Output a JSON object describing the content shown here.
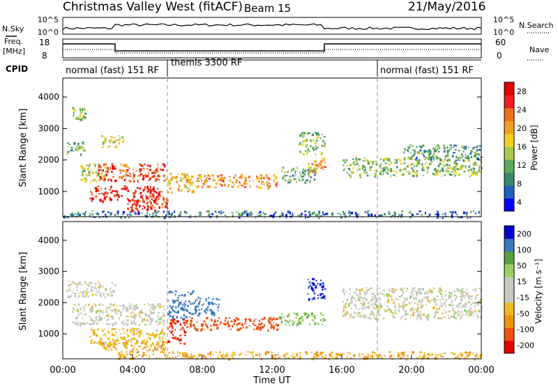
{
  "header": {
    "station": "Christmas Valley West (fitACF)",
    "beam": "Beam 15",
    "date": "21/May/2016"
  },
  "noise_panel": {
    "left_label": "N.Sky",
    "left_ticks": [
      "10^5",
      "10^0"
    ],
    "right_ticks": [
      "10^5",
      "10^0"
    ],
    "right_label": "N.Search"
  },
  "freq_panel": {
    "label_line1": "Freq.",
    "label_line2": "[MHz]",
    "left_ticks": [
      "18",
      "8"
    ],
    "right_ticks": [
      "60",
      "0"
    ],
    "right_label": "Nave"
  },
  "cpid": {
    "label": "CPID",
    "segments": [
      "normal (fast) 151 RF",
      "themis 3300 RF",
      "normal (fast) 151 RF"
    ]
  },
  "colors": {
    "power_scale": [
      "#0000ff",
      "#1f5fbf",
      "#3a8a6a",
      "#5aaa5a",
      "#a8c84a",
      "#f0d020",
      "#f0a020",
      "#f07020",
      "#f02020",
      "#e00000"
    ],
    "velocity_scale": [
      "#e00000",
      "#f05010",
      "#f09010",
      "#f0b820",
      "#c8c8c0",
      "#c8c8c0",
      "#9ad060",
      "#58a040",
      "#3a78c0",
      "#0000d0"
    ]
  },
  "chart_data": [
    {
      "type": "heatmap",
      "name": "Power",
      "ylabel": "Slant Range [km]",
      "yticks": [
        "4000",
        "3000",
        "2000",
        "1000"
      ],
      "ylim": [
        200,
        4600
      ],
      "colorbar_label": "Power [dB]",
      "colorbar_ticks": [
        "28",
        "24",
        "20",
        "16",
        "12",
        "8",
        "4"
      ],
      "clim": [
        0,
        30
      ],
      "echo_regions": [
        {
          "t0": 0.2,
          "t1": 1.2,
          "r0": 2200,
          "r1": 2600,
          "v": 10
        },
        {
          "t0": 0.5,
          "t1": 1.3,
          "r0": 3300,
          "r1": 3700,
          "v": 12
        },
        {
          "t0": 1.0,
          "t1": 2.6,
          "r0": 1300,
          "r1": 1900,
          "v": 14
        },
        {
          "t0": 2.0,
          "t1": 6.0,
          "r0": 1350,
          "r1": 1900,
          "v": 24
        },
        {
          "t0": 1.5,
          "t1": 5.8,
          "r0": 700,
          "r1": 1200,
          "v": 27
        },
        {
          "t0": 3.5,
          "t1": 6.0,
          "r0": 400,
          "r1": 800,
          "v": 25
        },
        {
          "t0": 2.2,
          "t1": 3.5,
          "r0": 2400,
          "r1": 2800,
          "v": 16
        },
        {
          "t0": 6.0,
          "t1": 7.5,
          "r0": 1000,
          "r1": 1600,
          "v": 18
        },
        {
          "t0": 7.0,
          "t1": 12.3,
          "r0": 1150,
          "r1": 1550,
          "v": 20
        },
        {
          "t0": 12.5,
          "t1": 14.5,
          "r0": 1300,
          "r1": 1800,
          "v": 10
        },
        {
          "t0": 13.5,
          "t1": 15.0,
          "r0": 2200,
          "r1": 2900,
          "v": 12
        },
        {
          "t0": 14.0,
          "t1": 15.0,
          "r0": 1600,
          "r1": 2100,
          "v": 20
        },
        {
          "t0": 16.0,
          "t1": 24.0,
          "r0": 1500,
          "r1": 2100,
          "v": 12
        },
        {
          "t0": 19.5,
          "t1": 24.0,
          "r0": 2000,
          "r1": 2500,
          "v": 9
        },
        {
          "t0": 0.0,
          "t1": 24.0,
          "r0": 200,
          "r1": 400,
          "v": 6
        }
      ]
    },
    {
      "type": "heatmap",
      "name": "Velocity",
      "xlabel": "Time UT",
      "xticks": [
        "00:00",
        "04:00",
        "08:00",
        "12:00",
        "16:00",
        "20:00",
        "00:00"
      ],
      "ylabel": "Slant Range [km]",
      "yticks": [
        "4000",
        "3000",
        "2000",
        "1000"
      ],
      "ylim": [
        200,
        4600
      ],
      "colorbar_label": "Velocity [m s⁻¹]",
      "colorbar_ticks": [
        "200",
        "100",
        "50",
        "15",
        "-15",
        "-50",
        "-100",
        "-200"
      ],
      "echo_regions": [
        {
          "t0": 0.2,
          "t1": 3.0,
          "r0": 2200,
          "r1": 2700,
          "v": 0
        },
        {
          "t0": 0.5,
          "t1": 5.8,
          "r0": 1300,
          "r1": 2000,
          "v": 0
        },
        {
          "t0": 1.5,
          "t1": 5.8,
          "r0": 700,
          "r1": 1200,
          "v": -30
        },
        {
          "t0": 2.2,
          "t1": 6.0,
          "r0": 450,
          "r1": 800,
          "v": -50
        },
        {
          "t0": 6.0,
          "t1": 7.5,
          "r0": 1500,
          "r1": 2400,
          "v": 150
        },
        {
          "t0": 6.0,
          "t1": 7.0,
          "r0": 700,
          "r1": 1500,
          "v": -200
        },
        {
          "t0": 7.0,
          "t1": 12.3,
          "r0": 1150,
          "r1": 1550,
          "v": -120
        },
        {
          "t0": 7.5,
          "t1": 9.0,
          "r0": 1600,
          "r1": 2200,
          "v": 150
        },
        {
          "t0": 12.3,
          "t1": 15.0,
          "r0": 1300,
          "r1": 1700,
          "v": 40
        },
        {
          "t0": 14.0,
          "t1": 15.0,
          "r0": 2100,
          "r1": 2800,
          "v": 200
        },
        {
          "t0": 16.0,
          "t1": 24.0,
          "r0": 1500,
          "r1": 2500,
          "v": 0
        },
        {
          "t0": 3.0,
          "t1": 24.0,
          "r0": 220,
          "r1": 450,
          "v": -50
        }
      ]
    }
  ]
}
